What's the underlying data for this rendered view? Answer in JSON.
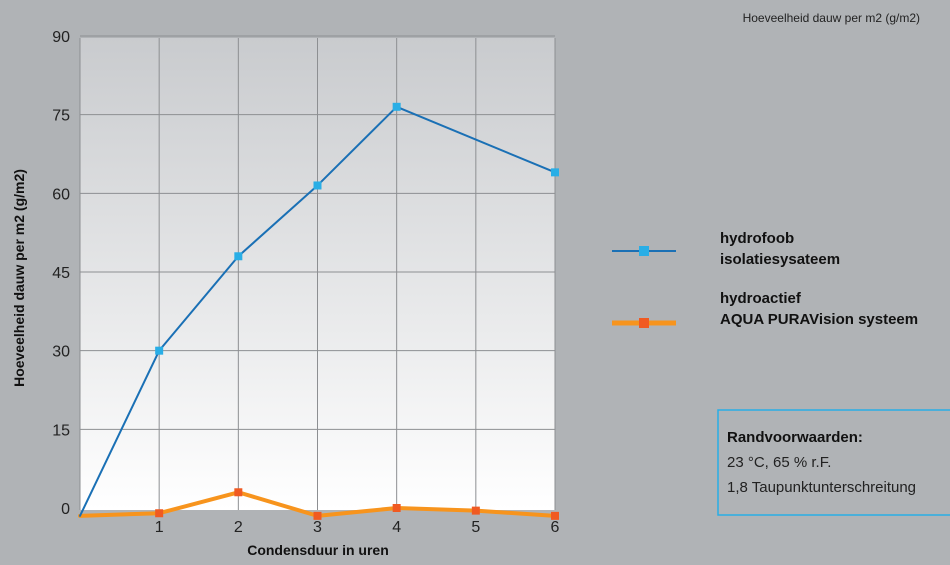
{
  "chart_data": {
    "type": "line",
    "title": "Hoeveelheid dauw per m2 (g/m2)",
    "xlabel": "Condensduur in uren",
    "ylabel": "Hoeveelheid dauw per m2 (g/m2)",
    "x": [
      0,
      1,
      2,
      3,
      4,
      5,
      6
    ],
    "x_tick_labels": [
      "1",
      "2",
      "3",
      "4",
      "5",
      "6"
    ],
    "y_tick_labels": [
      "0",
      "15",
      "30",
      "45",
      "60",
      "75",
      "90"
    ],
    "xlim": [
      0,
      6
    ],
    "ylim": [
      0,
      90
    ],
    "grid": true,
    "legend_position": "right",
    "series": [
      {
        "name_lines": [
          "hydrofoob",
          "isolatiesysateem"
        ],
        "color": "#1a70b5",
        "marker_color": "#29aee6",
        "values": [
          -1.5,
          30,
          48,
          61.5,
          76.5,
          null,
          64
        ]
      },
      {
        "name_lines": [
          "hydroactief",
          "AQUA PURAVision systeem"
        ],
        "color": "#f7941d",
        "marker_color": "#f05a22",
        "values": [
          -1.5,
          -1,
          3,
          -1.5,
          0,
          -0.5,
          -1.5
        ]
      }
    ],
    "conditions": {
      "title": "Randvoorwaarden:",
      "lines": [
        "23 °C, 65 % r.F.",
        "1,8 Taupunktunterschreitung"
      ],
      "border_color": "#29aee6"
    }
  }
}
